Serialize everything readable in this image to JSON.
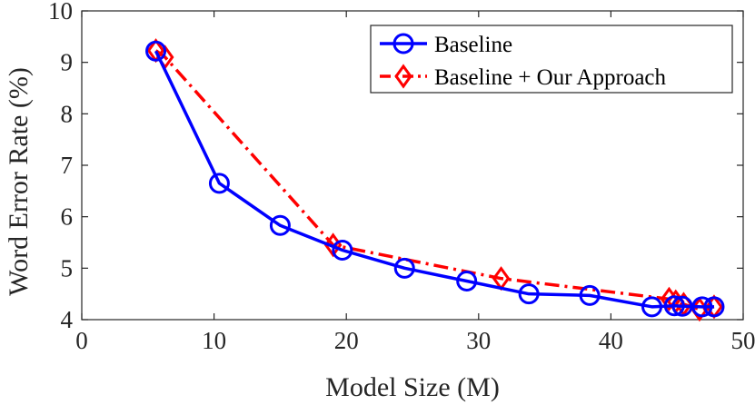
{
  "chart_data": {
    "type": "line",
    "xlabel": "Model Size (M)",
    "ylabel": "Word Error Rate (%)",
    "xlim": [
      0,
      50
    ],
    "ylim": [
      4,
      10
    ],
    "xticks": [
      0,
      10,
      20,
      30,
      40,
      50
    ],
    "yticks": [
      4,
      5,
      6,
      7,
      8,
      9,
      10
    ],
    "grid": false,
    "legend_position": "top-right",
    "series": [
      {
        "name": "Baseline",
        "color": "#0000ff",
        "line_style": "solid",
        "marker": "circle",
        "x": [
          5.6,
          10.4,
          15.0,
          19.7,
          24.4,
          29.1,
          33.8,
          38.4,
          43.1,
          44.8,
          45.4,
          46.9,
          47.8
        ],
        "y": [
          9.22,
          6.65,
          5.83,
          5.35,
          5.0,
          4.75,
          4.5,
          4.47,
          4.25,
          4.27,
          4.26,
          4.25,
          4.25
        ]
      },
      {
        "name": "Baseline + Our Approach",
        "color": "#ff0000",
        "line_style": "dash-dot",
        "marker": "diamond",
        "x": [
          5.6,
          6.3,
          19.0,
          31.7,
          44.4,
          44.9,
          45.5,
          46.7,
          47.8
        ],
        "y": [
          9.23,
          9.1,
          5.45,
          4.8,
          4.4,
          4.35,
          4.3,
          4.2,
          4.25
        ]
      }
    ]
  }
}
